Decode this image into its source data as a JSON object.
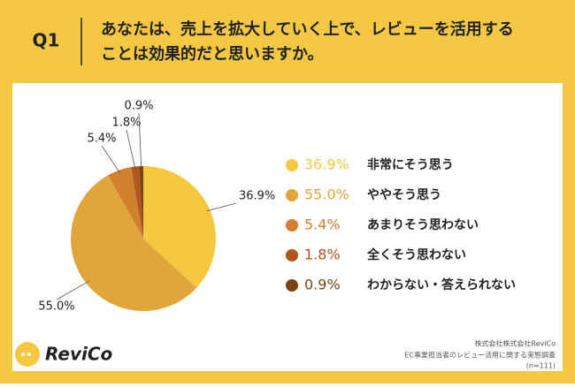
{
  "header": {
    "label": "Q1",
    "question": [
      "あなたは、売上を拡大していく上で、レビューを活用する",
      "ことは効果的だと思いますか。"
    ]
  },
  "chart_data": {
    "type": "pie",
    "categories": [
      "非常にそう思う",
      "ややそう思う",
      "あまりそう思わない",
      "全くそう思わない",
      "わからない・答えられない"
    ],
    "values": [
      36.9,
      55.0,
      5.4,
      1.8,
      0.9
    ],
    "value_labels": [
      "36.9%",
      "55.0%",
      "5.4%",
      "1.8%",
      "0.9%"
    ],
    "colors": [
      "#f5c842",
      "#e0a63c",
      "#d27f2e",
      "#b0561f",
      "#7a4412"
    ]
  },
  "footer": {
    "logo": "ReviCo",
    "credit": [
      "株式会社株式会社ReviCo",
      "EC事業担当者のレビュー活用に関する実態調査",
      "(n=111)"
    ]
  }
}
